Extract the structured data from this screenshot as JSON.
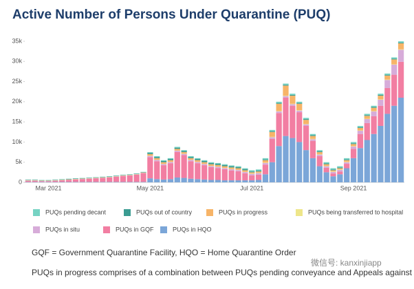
{
  "chart_data": {
    "type": "stacked_bar",
    "title": "Active Number of Persons Under Quarantine (PUQ)",
    "categories": [
      null,
      null,
      null,
      "Mar 2021",
      null,
      null,
      null,
      null,
      null,
      null,
      null,
      null,
      null,
      null,
      null,
      null,
      null,
      null,
      "May 2021",
      null,
      null,
      null,
      null,
      null,
      null,
      null,
      null,
      null,
      null,
      null,
      null,
      null,
      null,
      "Jul 2021",
      null,
      null,
      null,
      null,
      null,
      null,
      null,
      null,
      null,
      null,
      null,
      null,
      null,
      null,
      "Sep 2021",
      null,
      null,
      null,
      null,
      null,
      null,
      null
    ],
    "series": [
      {
        "name": "PUQs pending decant",
        "color": "#76d3c3",
        "values": [
          50,
          50,
          50,
          50,
          50,
          50,
          50,
          50,
          50,
          50,
          50,
          50,
          50,
          50,
          50,
          50,
          50,
          50,
          200,
          200,
          200,
          200,
          200,
          200,
          200,
          200,
          200,
          200,
          200,
          200,
          200,
          200,
          200,
          300,
          300,
          300,
          300,
          300,
          300,
          300,
          300,
          300,
          300,
          300,
          300,
          300,
          300,
          300,
          300,
          300,
          300,
          300,
          300,
          300,
          300,
          300
        ]
      },
      {
        "name": "PUQs out of country",
        "color": "#3b9c92",
        "values": [
          100,
          100,
          100,
          100,
          100,
          100,
          100,
          100,
          100,
          100,
          100,
          100,
          100,
          100,
          100,
          100,
          100,
          100,
          300,
          300,
          300,
          300,
          300,
          300,
          300,
          300,
          300,
          300,
          300,
          300,
          300,
          300,
          300,
          200,
          200,
          200,
          200,
          200,
          200,
          200,
          200,
          200,
          200,
          200,
          200,
          200,
          200,
          200,
          200,
          200,
          200,
          200,
          200,
          200,
          200,
          200
        ]
      },
      {
        "name": "PUQs in progress",
        "color": "#f7b468",
        "values": [
          50,
          50,
          50,
          50,
          50,
          50,
          50,
          50,
          50,
          50,
          50,
          50,
          50,
          50,
          50,
          50,
          50,
          50,
          400,
          400,
          400,
          400,
          400,
          400,
          400,
          400,
          400,
          400,
          400,
          400,
          400,
          400,
          400,
          300,
          300,
          600,
          1200,
          1800,
          2500,
          2000,
          1600,
          1000,
          700,
          500,
          400,
          300,
          300,
          400,
          500,
          600,
          700,
          800,
          900,
          1000,
          1200,
          1500
        ]
      },
      {
        "name": "PUQs being transferred to hospital",
        "color": "#eee68a",
        "values": [
          50,
          50,
          50,
          50,
          50,
          50,
          50,
          50,
          50,
          50,
          50,
          50,
          50,
          50,
          50,
          50,
          50,
          50,
          50,
          50,
          50,
          50,
          50,
          50,
          50,
          50,
          50,
          50,
          50,
          50,
          50,
          50,
          50,
          100,
          100,
          100,
          100,
          100,
          100,
          100,
          100,
          100,
          100,
          100,
          100,
          100,
          100,
          100,
          100,
          100,
          100,
          100,
          100,
          100,
          100,
          100
        ]
      },
      {
        "name": "PUQs in situ",
        "color": "#d7acd9",
        "values": [
          50,
          50,
          50,
          50,
          50,
          50,
          50,
          50,
          50,
          50,
          50,
          50,
          50,
          50,
          50,
          50,
          50,
          50,
          300,
          300,
          300,
          300,
          300,
          300,
          300,
          300,
          300,
          300,
          300,
          300,
          300,
          300,
          300,
          400,
          400,
          400,
          400,
          400,
          400,
          400,
          400,
          400,
          400,
          400,
          400,
          400,
          400,
          400,
          600,
          800,
          1000,
          1200,
          1500,
          2000,
          2500,
          3000
        ]
      },
      {
        "name": "PUQs in GQF",
        "color": "#f27ea2",
        "values": [
          300,
          300,
          200,
          200,
          300,
          400,
          500,
          600,
          700,
          800,
          900,
          1000,
          1100,
          1300,
          1500,
          1600,
          1800,
          2200,
          5250,
          4450,
          3550,
          3950,
          6350,
          5650,
          4350,
          3950,
          3550,
          3150,
          2950,
          2750,
          2450,
          2250,
          1750,
          1200,
          1300,
          2400,
          5800,
          8200,
          9500,
          8000,
          7400,
          6000,
          4300,
          2500,
          1100,
          700,
          700,
          1100,
          2300,
          3500,
          4200,
          4400,
          5000,
          6400,
          7700,
          8900
        ]
      },
      {
        "name": "PUQs in HQO",
        "color": "#7ba6d8",
        "values": [
          100,
          100,
          100,
          100,
          100,
          100,
          100,
          100,
          100,
          100,
          100,
          100,
          100,
          100,
          100,
          100,
          100,
          100,
          1000,
          800,
          700,
          800,
          1200,
          1100,
          900,
          800,
          700,
          600,
          600,
          500,
          500,
          500,
          500,
          500,
          600,
          2000,
          5000,
          9000,
          11500,
          11000,
          10000,
          8000,
          6000,
          4000,
          2500,
          1500,
          2000,
          3500,
          6000,
          8500,
          10500,
          12000,
          14000,
          17000,
          19000,
          21000
        ]
      }
    ],
    "ylim": [
      0,
      35000
    ],
    "yticks": [
      0,
      {
        "value": 5000,
        "label": "5k"
      },
      {
        "value": 10000,
        "label": "10k"
      },
      {
        "value": 15000,
        "label": "15k"
      },
      {
        "value": 20000,
        "label": "20k"
      },
      {
        "value": 25000,
        "label": "25k"
      },
      {
        "value": 30000,
        "label": "30k"
      },
      {
        "value": 35000,
        "label": "35k"
      }
    ],
    "notes": [
      "GQF = Government Quarantine Facility, HQO = Home Quarantine Order",
      "PUQs in progress comprises of a combination between PUQs pending conveyance and Appeals against GQF"
    ],
    "watermark": "微信号: kanxinjiapp"
  }
}
